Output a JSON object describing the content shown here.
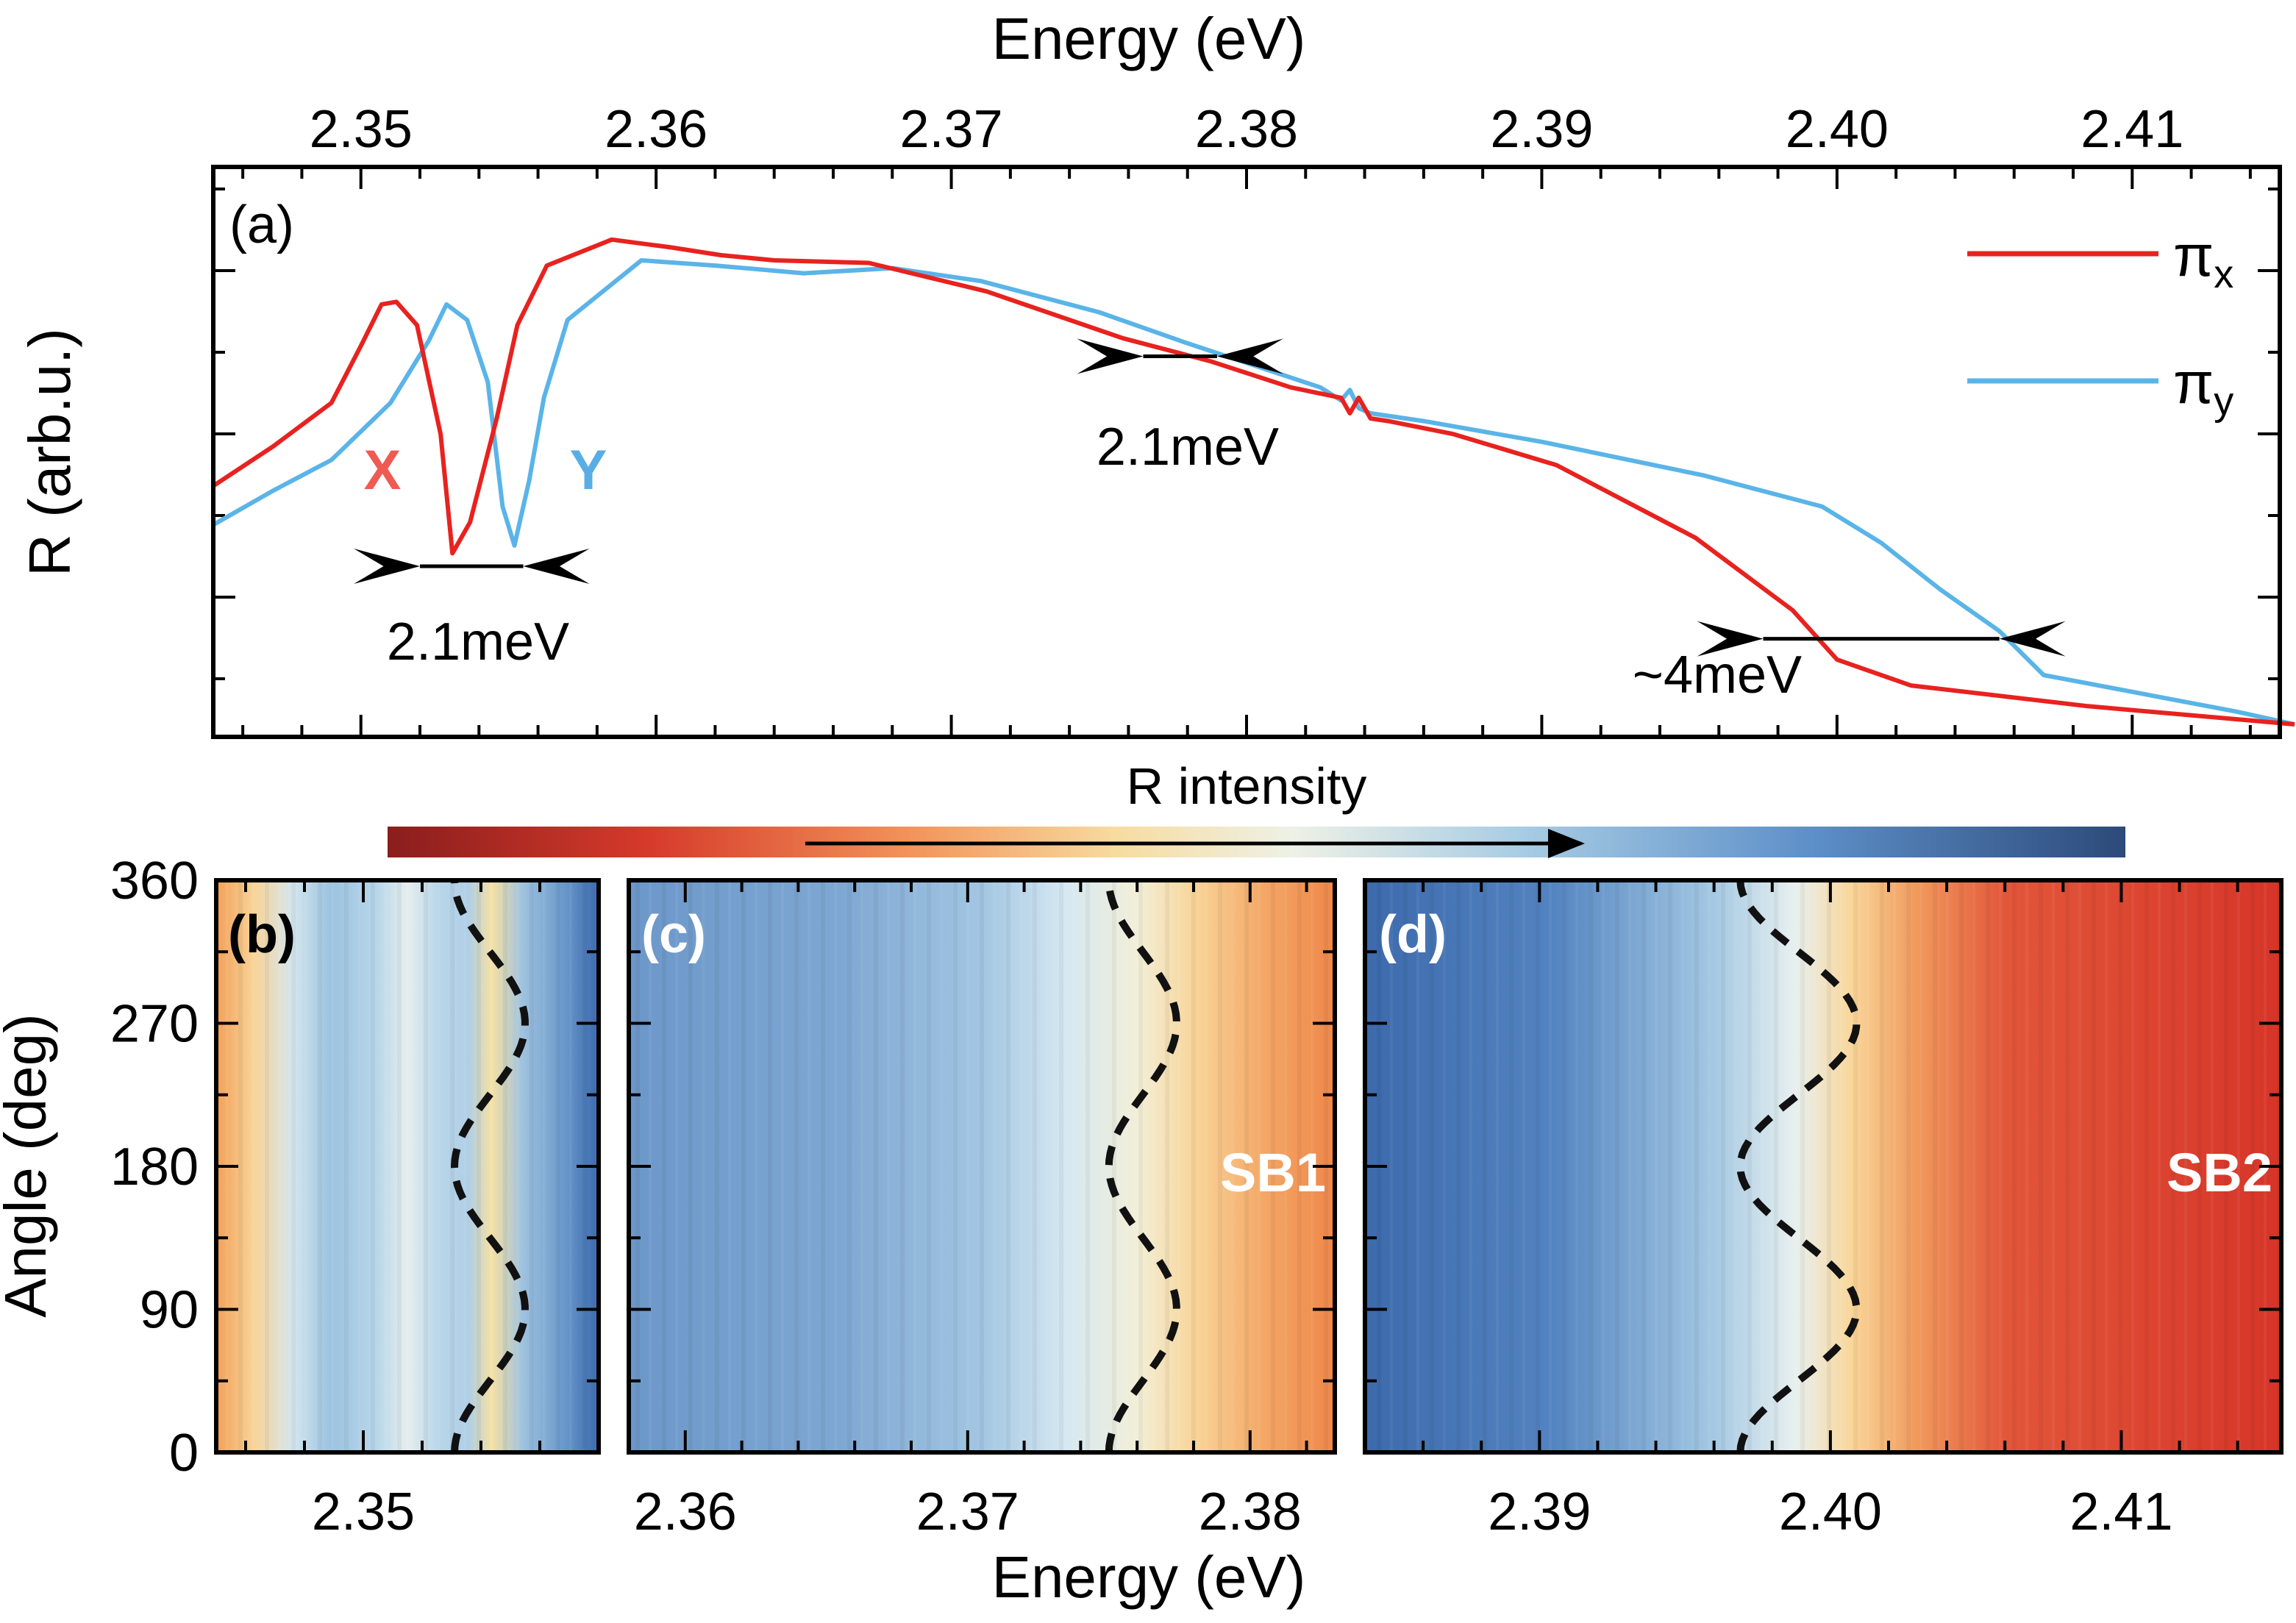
{
  "colors": {
    "pi_x": "#e8221f",
    "pi_y": "#5ab4e8",
    "x_label": "#ef5a52",
    "y_label": "#58aee4",
    "cmap_low": "#8a1d1d",
    "cmap_mid": "#f6eed6",
    "cmap_high": "#2c4a7a",
    "dashed": "#111111"
  },
  "chart_data": [
    {
      "id": "a",
      "type": "line",
      "panel_label": "(a)",
      "xlabel": "Energy (eV)",
      "ylabel": "R (arb.u.)",
      "xlim": [
        2.345,
        2.415
      ],
      "ylim": [
        0,
        1
      ],
      "x_ticks": [
        "2.35",
        "2.36",
        "2.37",
        "2.38",
        "2.39",
        "2.40",
        "2.41"
      ],
      "series": [
        {
          "name": "π_x",
          "legend": "πx",
          "color_key": "pi_x",
          "x": [
            2.345,
            2.347,
            2.349,
            2.35,
            2.3507,
            2.3512,
            2.3519,
            2.3527,
            2.3531,
            2.3537,
            2.3546,
            2.3553,
            2.3563,
            2.3585,
            2.3605,
            2.3622,
            2.364,
            2.3672,
            2.3712,
            2.3758,
            2.3788,
            2.3815,
            2.3832,
            2.3835,
            2.3838,
            2.3842,
            2.3848,
            2.387,
            2.3905,
            2.3952,
            2.3985,
            2.4,
            2.4025,
            2.4085,
            2.4155
          ],
          "y": [
            0.46,
            0.535,
            0.62,
            0.73,
            0.81,
            0.815,
            0.77,
            0.56,
            0.33,
            0.39,
            0.59,
            0.77,
            0.885,
            0.935,
            0.92,
            0.905,
            0.895,
            0.89,
            0.835,
            0.745,
            0.7,
            0.65,
            0.63,
            0.6,
            0.63,
            0.59,
            0.585,
            0.56,
            0.5,
            0.36,
            0.22,
            0.125,
            0.075,
            0.035,
            0.0
          ]
        },
        {
          "name": "π_y",
          "legend": "πy",
          "color_key": "pi_y",
          "x": [
            2.345,
            2.347,
            2.349,
            2.351,
            2.3523,
            2.3529,
            2.3536,
            2.3543,
            2.3548,
            2.3552,
            2.3557,
            2.3562,
            2.357,
            2.3595,
            2.362,
            2.365,
            2.368,
            2.371,
            2.375,
            2.378,
            2.3825,
            2.3832,
            2.3835,
            2.3838,
            2.3842,
            2.386,
            2.39,
            2.3955,
            2.3995,
            2.4015,
            2.4035,
            2.4055,
            2.407,
            2.4135,
            2.4155
          ],
          "y": [
            0.385,
            0.45,
            0.51,
            0.62,
            0.74,
            0.81,
            0.78,
            0.66,
            0.42,
            0.345,
            0.47,
            0.63,
            0.78,
            0.895,
            0.885,
            0.87,
            0.88,
            0.855,
            0.795,
            0.735,
            0.65,
            0.625,
            0.645,
            0.61,
            0.6,
            0.585,
            0.545,
            0.48,
            0.42,
            0.35,
            0.26,
            0.18,
            0.095,
            0.025,
            0.0
          ]
        }
      ],
      "annotations": [
        {
          "text": "X",
          "color_key": "x_label"
        },
        {
          "text": "Y",
          "color_key": "y_label"
        },
        {
          "text": "2.1meV",
          "x_from": 2.352,
          "x_to": 2.3555,
          "y": 0.305
        },
        {
          "text": "2.1meV",
          "x_from": 2.3765,
          "x_to": 2.379,
          "y": 0.71
        },
        {
          "text": "~4meV",
          "x_from": 2.3975,
          "x_to": 2.4055,
          "y": 0.165
        }
      ]
    },
    {
      "id": "colorbar",
      "type": "colorbar",
      "title": "R intensity"
    },
    {
      "id": "b",
      "type": "heatmap",
      "panel_label": "(b)",
      "xlim": [
        2.345,
        2.358
      ],
      "ylim": [
        0,
        360
      ],
      "x_ticks": [
        "2.35"
      ],
      "y_ticks": [
        "0",
        "90",
        "180",
        "270",
        "360"
      ],
      "ylabel": "Angle (deg)",
      "dashed_center": 2.3543,
      "dashed_amplitude": 0.0012,
      "dashed_phase_deg": 90,
      "dashed_period_deg": 180
    },
    {
      "id": "c",
      "type": "heatmap",
      "panel_label": "(c)",
      "xlim": [
        2.358,
        2.383
      ],
      "ylim": [
        0,
        360
      ],
      "x_ticks": [
        "2.36",
        "2.37",
        "2.38"
      ],
      "xlabel": "Energy (eV)",
      "band_label": "SB1",
      "dashed_center": 2.3762,
      "dashed_amplitude": 0.0012,
      "dashed_phase_deg": 90,
      "dashed_period_deg": 180
    },
    {
      "id": "d",
      "type": "heatmap",
      "panel_label": "(d)",
      "xlim": [
        2.384,
        2.4155
      ],
      "ylim": [
        0,
        360
      ],
      "x_ticks": [
        "2.39",
        "2.40",
        "2.41"
      ],
      "band_label": "SB2",
      "dashed_center": 2.3989,
      "dashed_amplitude": 0.002,
      "dashed_phase_deg": 90,
      "dashed_period_deg": 180
    }
  ]
}
